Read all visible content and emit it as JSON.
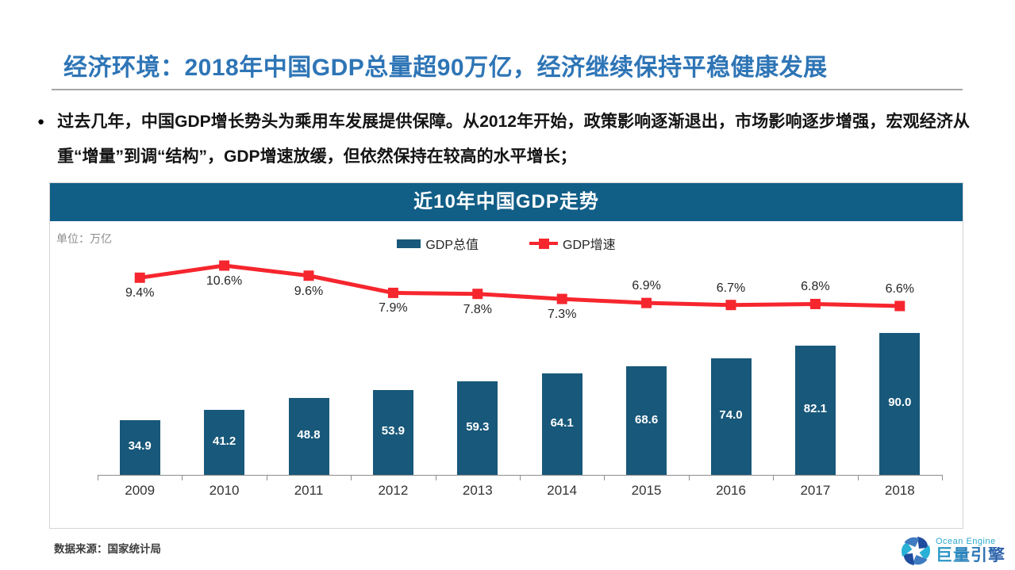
{
  "page": {
    "title": "经济环境：2018年中国GDP总量超90万亿，经济继续保持平稳健康发展",
    "bullet_text": "过去几年，中国GDP增长势头为乘用车发展提供保障。从2012年开始，政策影响逐渐退出，市场影响逐步增强，宏观经济从重“增量”到调“结构”，GDP增速放缓，但依然保持在较高的水平增长；",
    "footer_source": "数据来源：国家统计局",
    "logo": {
      "brand_en": "Ocean Engine",
      "brand_cn": "巨量引擎"
    }
  },
  "colors": {
    "title_blue": "#2E75B6",
    "chart_header_teal": "#115E87",
    "bar_teal": "#18587A",
    "line_red": "#F6262E",
    "divider_gray": "#A6A6A6"
  },
  "chart_data": {
    "type": "combo-bar-line",
    "title": "近10年中国GDP走势",
    "unit_label": "单位：万亿",
    "categories": [
      "2009",
      "2010",
      "2011",
      "2012",
      "2013",
      "2014",
      "2015",
      "2016",
      "2017",
      "2018"
    ],
    "series": [
      {
        "name": "GDP总值",
        "type": "bar",
        "values": [
          34.9,
          41.2,
          48.8,
          53.9,
          59.3,
          64.1,
          68.6,
          74.0,
          82.1,
          90.0
        ],
        "labels": [
          "34.9",
          "41.2",
          "48.8",
          "53.9",
          "59.3",
          "64.1",
          "68.6",
          "74.0",
          "82.1",
          "90.0"
        ],
        "color": "#18587A",
        "label_color": "#FFFFFF"
      },
      {
        "name": "GDP增速",
        "type": "line",
        "values": [
          9.4,
          10.6,
          9.6,
          7.9,
          7.8,
          7.3,
          6.9,
          6.7,
          6.8,
          6.6
        ],
        "labels": [
          "9.4%",
          "10.6%",
          "9.6%",
          "7.9%",
          "7.8%",
          "7.3%",
          "6.9%",
          "6.7%",
          "6.8%",
          "6.6%"
        ],
        "label_side": [
          "below",
          "below",
          "below",
          "below",
          "below",
          "below",
          "above",
          "above",
          "above",
          "above"
        ],
        "color": "#F6262E",
        "marker": "square"
      }
    ],
    "legend_position": "top-center",
    "grid": false,
    "value_axis_visible": false,
    "x_axis": {
      "line": true,
      "ticks": "between-categories"
    }
  }
}
